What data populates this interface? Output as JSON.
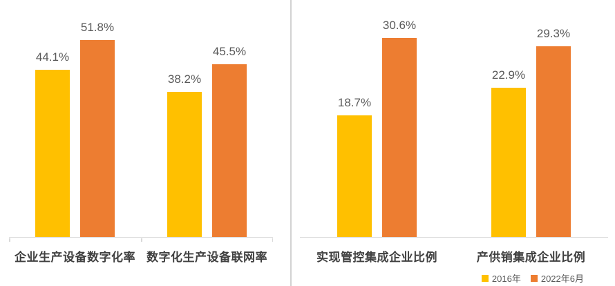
{
  "colors": {
    "series_2016": "#FFC000",
    "series_2022": "#ED7D31",
    "data_label": "#595959",
    "category_label": "#404040",
    "axis_line": "#D9D9D9",
    "divider": "#D2D2D2",
    "background": "#FFFFFF"
  },
  "legend": {
    "items": [
      {
        "label": "2016年",
        "color": "#FFC000"
      },
      {
        "label": "2022年6月",
        "color": "#ED7D31"
      }
    ]
  },
  "chart_data": [
    {
      "type": "bar",
      "title": "",
      "categories": [
        "企业生产设备数字化率",
        "数字化生产设备联网率"
      ],
      "series": [
        {
          "name": "2016年",
          "color": "#FFC000",
          "values": [
            44.1,
            38.2
          ]
        },
        {
          "name": "2022年6月",
          "color": "#ED7D31",
          "values": [
            51.8,
            45.5
          ]
        }
      ],
      "data_labels": [
        [
          "44.1%",
          "38.2%"
        ],
        [
          "51.8%",
          "45.5%"
        ]
      ],
      "xlabel": "",
      "ylabel": "",
      "ylim": [
        0,
        60
      ],
      "grid": false,
      "y_axis_visible": false,
      "legend_position": "none"
    },
    {
      "type": "bar",
      "title": "",
      "categories": [
        "实现管控集成企业比例",
        "产供销集成企业比例"
      ],
      "series": [
        {
          "name": "2016年",
          "color": "#FFC000",
          "values": [
            18.7,
            22.9
          ]
        },
        {
          "name": "2022年6月",
          "color": "#ED7D31",
          "values": [
            30.6,
            29.3
          ]
        }
      ],
      "data_labels": [
        [
          "18.7%",
          "22.9%"
        ],
        [
          "30.6%",
          "29.3%"
        ]
      ],
      "xlabel": "",
      "ylabel": "",
      "ylim": [
        0,
        35
      ],
      "grid": false,
      "y_axis_visible": false,
      "legend_position": "bottom-right"
    }
  ]
}
